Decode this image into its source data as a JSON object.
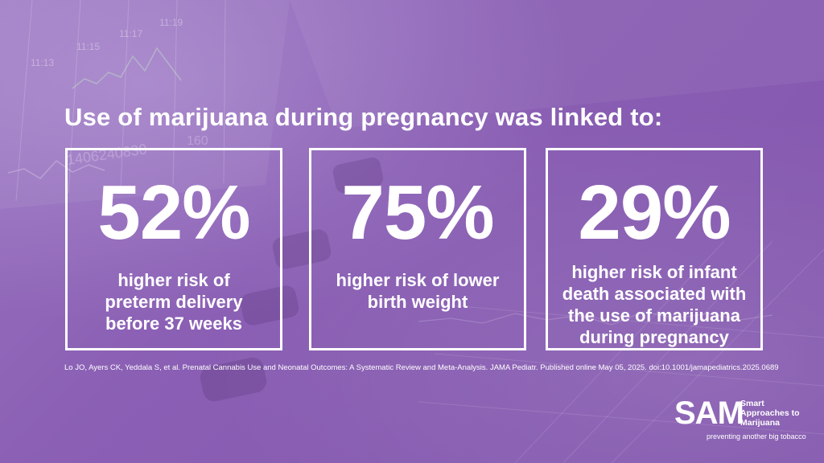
{
  "headline": "Use of marijuana during pregnancy was linked to:",
  "stats": [
    {
      "value": "52%",
      "lines": [
        "higher risk of",
        "preterm delivery",
        "before 37 weeks"
      ]
    },
    {
      "value": "75%",
      "lines": [
        "higher risk of lower",
        "birth weight"
      ]
    },
    {
      "value": "29%",
      "lines": [
        "higher risk of infant",
        "death associated with",
        "the use of marijuana",
        "during pregnancy"
      ]
    }
  ],
  "citation": "Lo JO, Ayers CK, Yeddala S, et al. Prenatal Cannabis Use and Neonatal Outcomes: A Systematic Review and Meta-Analysis. JAMA Pediatr. Published online May 05, 2025. doi:10.1001/jamapediatrics.2025.0689",
  "logo": {
    "mark": "SAM",
    "name_lines": [
      "Smart",
      "Approaches to",
      "Marijuana"
    ],
    "tagline": "preventing another big tobacco"
  },
  "background_monitor_text": {
    "times": [
      "11:13",
      "11:15",
      "11:17",
      "11:19"
    ],
    "number": "1406240830",
    "reading": "160"
  },
  "colors": {
    "overlay": "#8a5fb4",
    "text": "#ffffff"
  }
}
